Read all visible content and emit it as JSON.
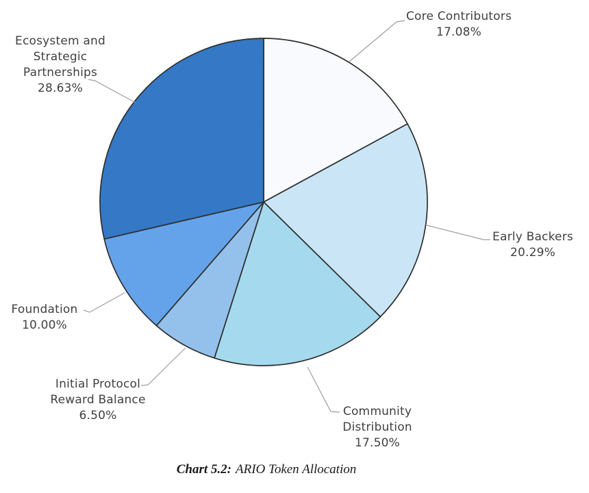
{
  "chart_data": {
    "type": "pie",
    "title": "",
    "caption": {
      "prefix": "Chart 5.2:",
      "text": "ARIO Token Allocation"
    },
    "start_angle": "12-oclock",
    "direction": "clockwise",
    "label_style": "outside-with-leader-lines",
    "slices": [
      {
        "label": "Core Contributors",
        "value_pct": 17.08,
        "display": "17.08%",
        "color": "#F8FAFD"
      },
      {
        "label": "Early Backers",
        "value_pct": 20.29,
        "display": "20.29%",
        "color": "#CAE6F6"
      },
      {
        "label": "Community Distribution",
        "value_pct": 17.5,
        "display": "17.50%",
        "color": "#A5DAEE"
      },
      {
        "label": "Initial Protocol Reward Balance",
        "value_pct": 6.5,
        "display": "6.50%",
        "color": "#94C1EC"
      },
      {
        "label": "Foundation",
        "value_pct": 10.0,
        "display": "10.00%",
        "color": "#64A3EA"
      },
      {
        "label": "Ecosystem and Strategic Partnerships",
        "value_pct": 28.63,
        "display": "28.63%",
        "color": "#3578C5"
      }
    ],
    "stroke_color": "#2E2E2E",
    "leader_line_color": "#9E9E9E",
    "label_text_color": "#404040"
  }
}
